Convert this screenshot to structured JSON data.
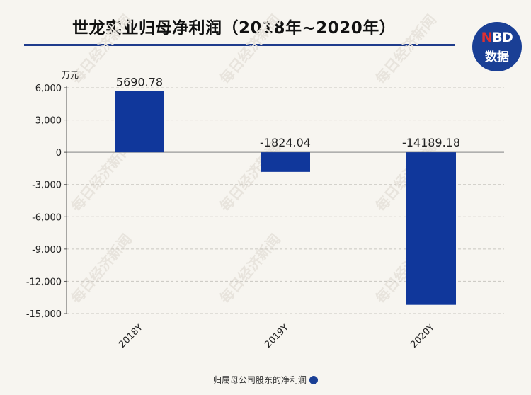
{
  "header": {
    "title": "世龙实业归母净利润（2018年~2020年）",
    "logo_line1_n": "N",
    "logo_line1_rest": "BD",
    "logo_line2": "数据"
  },
  "watermark_text": "每日经济新闻",
  "chart_data": {
    "type": "bar",
    "categories": [
      "2018Y",
      "2019Y",
      "2020Y"
    ],
    "series": [
      {
        "name": "归属母公司股东的净利润",
        "values": [
          5690.78,
          -1824.04,
          -14189.18
        ]
      }
    ],
    "data_labels": [
      "5690.78",
      "-1824.04",
      "-14189.18"
    ],
    "ylabel": "万元",
    "ylim": [
      -15000,
      6000
    ],
    "yticks": [
      6000,
      3000,
      0,
      -3000,
      -6000,
      -9000,
      -12000,
      -15000
    ],
    "ytick_labels": [
      "6,000",
      "3,000",
      "0",
      "-3,000",
      "-6,000",
      "-9,000",
      "-12,000",
      "-15,000"
    ],
    "grid": true,
    "legend_position": "bottom",
    "bar_color": "#10379b"
  }
}
